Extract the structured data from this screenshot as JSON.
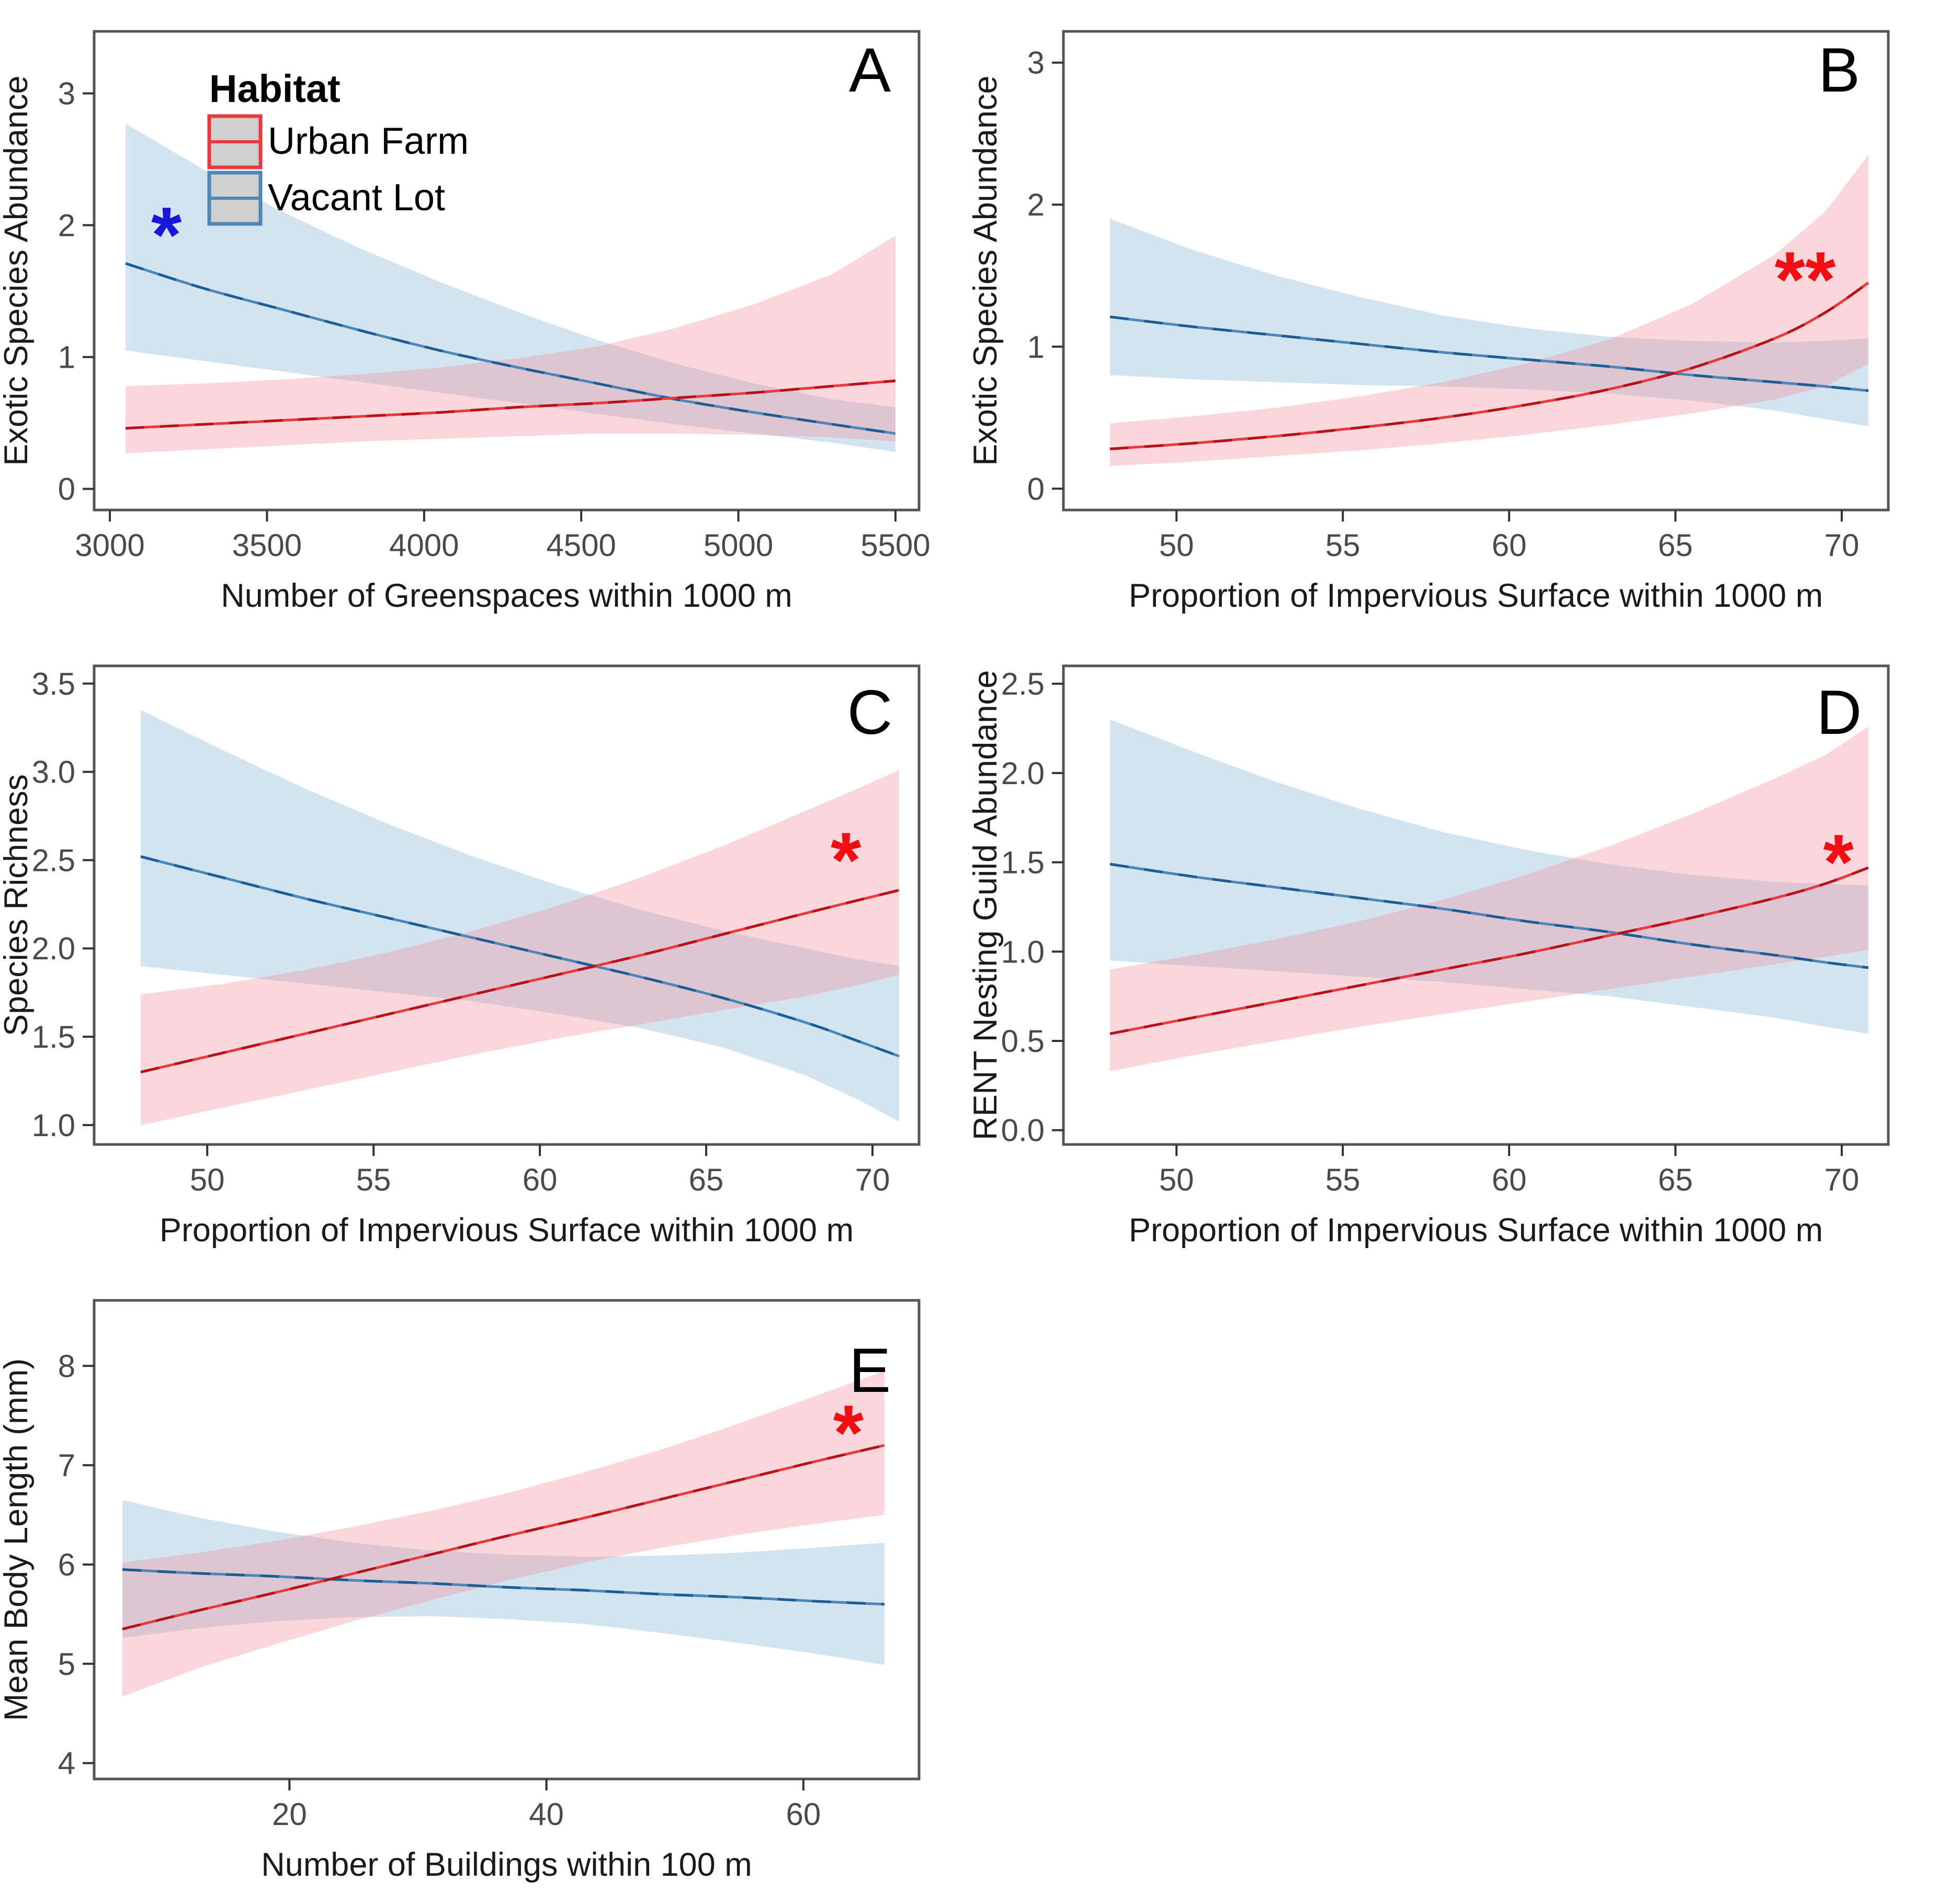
{
  "figure": {
    "background": "#ffffff",
    "border_color": "#545454",
    "tick_color": "#333333",
    "tick_label_color": "#4a4a4a",
    "axis_title_color": "#1a1a1a",
    "panel_letter_color": "#000000"
  },
  "colors": {
    "red_line": "#E8393F",
    "red_line_dark": "#B5121B",
    "red_fill": "#F28C96",
    "red_fill_opacity": 0.35,
    "blue_line": "#4E86B7",
    "blue_line_dark": "#1E5C94",
    "blue_fill": "#9DC3E0",
    "blue_fill_opacity": 0.45,
    "annotation_red": "#F20D12",
    "annotation_blue": "#1616DD",
    "legend_key_fill": "#cfcfcf"
  },
  "legend": {
    "title": "Habitat",
    "entries": [
      {
        "label": "Urban Farm",
        "color_key": "red"
      },
      {
        "label": "Vacant Lot",
        "color_key": "blue"
      }
    ]
  },
  "chart_data": [
    {
      "panel": "A",
      "type": "line",
      "panel_letter": "A",
      "xlabel": "Number of Greenspaces within 1000 m",
      "ylabel": "Exotic Species Abundance",
      "xlim": [
        2950,
        5575
      ],
      "ylim": [
        -0.16,
        3.47
      ],
      "xticks": [
        3000,
        3500,
        4000,
        4500,
        5000,
        5500
      ],
      "xtick_labels": [
        "3000",
        "3500",
        "4000",
        "4500",
        "5000",
        "5500"
      ],
      "yticks": [
        0,
        1,
        2,
        3
      ],
      "ytick_labels": [
        "0",
        "1",
        "2",
        "3"
      ],
      "legend": true,
      "annotation": {
        "text": "*",
        "x": 3180,
        "y": 2.02,
        "color_key": "annotation_blue"
      },
      "series": [
        {
          "name": "Vacant Lot",
          "color_key": "blue",
          "x": [
            3050,
            3300,
            3550,
            3800,
            4050,
            4300,
            4550,
            4800,
            5050,
            5300,
            5500
          ],
          "line": [
            1.71,
            1.52,
            1.36,
            1.2,
            1.05,
            0.92,
            0.8,
            0.68,
            0.58,
            0.49,
            0.42
          ],
          "upper": [
            2.77,
            2.42,
            2.1,
            1.82,
            1.57,
            1.34,
            1.13,
            0.95,
            0.8,
            0.68,
            0.62
          ],
          "lower": [
            1.05,
            0.97,
            0.89,
            0.81,
            0.73,
            0.65,
            0.57,
            0.49,
            0.42,
            0.35,
            0.28
          ]
        },
        {
          "name": "Urban Farm",
          "color_key": "red",
          "x": [
            3050,
            3300,
            3550,
            3800,
            4050,
            4300,
            4550,
            4800,
            5050,
            5300,
            5500
          ],
          "line": [
            0.46,
            0.49,
            0.52,
            0.55,
            0.58,
            0.62,
            0.65,
            0.69,
            0.73,
            0.78,
            0.82
          ],
          "upper": [
            0.78,
            0.8,
            0.83,
            0.87,
            0.92,
            0.99,
            1.08,
            1.22,
            1.4,
            1.63,
            1.92
          ],
          "lower": [
            0.27,
            0.3,
            0.33,
            0.36,
            0.38,
            0.4,
            0.42,
            0.42,
            0.41,
            0.39,
            0.36
          ]
        }
      ]
    },
    {
      "panel": "B",
      "type": "line",
      "panel_letter": "B",
      "xlabel": "Proportion of Impervious Surface within 1000 m",
      "ylabel": "Exotic Species Abundance",
      "xlim": [
        46.6,
        71.4
      ],
      "ylim": [
        -0.15,
        3.22
      ],
      "xticks": [
        50,
        55,
        60,
        65,
        70
      ],
      "xtick_labels": [
        "50",
        "55",
        "60",
        "65",
        "70"
      ],
      "yticks": [
        0,
        1,
        2,
        3
      ],
      "ytick_labels": [
        "0",
        "1",
        "2",
        "3"
      ],
      "legend": false,
      "annotation": {
        "text": "**",
        "x": 68.9,
        "y": 1.56,
        "color_key": "annotation_red"
      },
      "series": [
        {
          "name": "Vacant Lot",
          "color_key": "blue",
          "x": [
            48,
            50.5,
            53,
            55.5,
            58,
            60.5,
            63,
            65.5,
            68,
            69.5,
            70.8
          ],
          "line": [
            1.21,
            1.14,
            1.08,
            1.02,
            0.96,
            0.91,
            0.86,
            0.8,
            0.75,
            0.72,
            0.69
          ],
          "upper": [
            1.9,
            1.68,
            1.5,
            1.35,
            1.22,
            1.13,
            1.07,
            1.04,
            1.03,
            1.04,
            1.06
          ],
          "lower": [
            0.8,
            0.77,
            0.75,
            0.73,
            0.72,
            0.7,
            0.67,
            0.62,
            0.55,
            0.49,
            0.44
          ]
        },
        {
          "name": "Urban Farm",
          "color_key": "red",
          "x": [
            48,
            50.5,
            53,
            55.5,
            58,
            60.5,
            63,
            65.5,
            68,
            69.5,
            70.8
          ],
          "line": [
            0.28,
            0.32,
            0.37,
            0.43,
            0.5,
            0.59,
            0.7,
            0.85,
            1.06,
            1.24,
            1.45
          ],
          "upper": [
            0.46,
            0.51,
            0.57,
            0.65,
            0.75,
            0.88,
            1.05,
            1.3,
            1.65,
            1.95,
            2.35
          ],
          "lower": [
            0.16,
            0.19,
            0.23,
            0.27,
            0.32,
            0.38,
            0.45,
            0.53,
            0.63,
            0.72,
            0.88
          ]
        }
      ]
    },
    {
      "panel": "C",
      "type": "line",
      "panel_letter": "C",
      "xlabel": "Proportion of Impervious Surface within 1000 m",
      "ylabel": "Species Richness",
      "xlim": [
        46.6,
        71.4
      ],
      "ylim": [
        0.89,
        3.6
      ],
      "xticks": [
        50,
        55,
        60,
        65,
        70
      ],
      "xtick_labels": [
        "50",
        "55",
        "60",
        "65",
        "70"
      ],
      "yticks": [
        1.0,
        1.5,
        2.0,
        2.5,
        3.0,
        3.5
      ],
      "ytick_labels": [
        "1.0",
        "1.5",
        "2.0",
        "2.5",
        "3.0",
        "3.5"
      ],
      "legend": false,
      "annotation": {
        "text": "*",
        "x": 69.2,
        "y": 2.57,
        "color_key": "annotation_red"
      },
      "series": [
        {
          "name": "Vacant Lot",
          "color_key": "blue",
          "x": [
            48,
            50.5,
            53,
            55.5,
            58,
            60.5,
            63,
            65.5,
            68,
            69.5,
            70.8
          ],
          "line": [
            2.52,
            2.4,
            2.28,
            2.17,
            2.06,
            1.95,
            1.84,
            1.72,
            1.58,
            1.48,
            1.39
          ],
          "upper": [
            3.35,
            3.12,
            2.9,
            2.7,
            2.52,
            2.36,
            2.22,
            2.1,
            2.0,
            1.94,
            1.9
          ],
          "lower": [
            1.9,
            1.85,
            1.8,
            1.75,
            1.7,
            1.63,
            1.55,
            1.44,
            1.28,
            1.15,
            1.02
          ]
        },
        {
          "name": "Urban Farm",
          "color_key": "red",
          "x": [
            48,
            50.5,
            53,
            55.5,
            58,
            60.5,
            63,
            65.5,
            68,
            69.5,
            70.8
          ],
          "line": [
            1.3,
            1.41,
            1.52,
            1.63,
            1.74,
            1.85,
            1.96,
            2.08,
            2.2,
            2.27,
            2.33
          ],
          "upper": [
            1.74,
            1.8,
            1.88,
            1.98,
            2.1,
            2.24,
            2.4,
            2.58,
            2.78,
            2.9,
            3.01
          ],
          "lower": [
            1.0,
            1.1,
            1.2,
            1.3,
            1.4,
            1.49,
            1.57,
            1.65,
            1.73,
            1.79,
            1.85
          ]
        }
      ]
    },
    {
      "panel": "D",
      "type": "line",
      "panel_letter": "D",
      "xlabel": "Proportion of Impervious Surface within 1000 m",
      "ylabel": "RENT Nesting Guild Abundance",
      "xlim": [
        46.6,
        71.4
      ],
      "ylim": [
        -0.08,
        2.6
      ],
      "xticks": [
        50,
        55,
        60,
        65,
        70
      ],
      "xtick_labels": [
        "50",
        "55",
        "60",
        "65",
        "70"
      ],
      "yticks": [
        0.0,
        0.5,
        1.0,
        1.5,
        2.0,
        2.5
      ],
      "ytick_labels": [
        "0.0",
        "0.5",
        "1.0",
        "1.5",
        "2.0",
        "2.5"
      ],
      "legend": false,
      "annotation": {
        "text": "*",
        "x": 69.9,
        "y": 1.57,
        "color_key": "annotation_red"
      },
      "series": [
        {
          "name": "Vacant Lot",
          "color_key": "blue",
          "x": [
            48,
            50.5,
            53,
            55.5,
            58,
            60.5,
            63,
            65.5,
            68,
            69.5,
            70.8
          ],
          "line": [
            1.49,
            1.42,
            1.36,
            1.3,
            1.24,
            1.17,
            1.11,
            1.04,
            0.98,
            0.94,
            0.91
          ],
          "upper": [
            2.3,
            2.12,
            1.95,
            1.8,
            1.67,
            1.57,
            1.49,
            1.43,
            1.39,
            1.38,
            1.37
          ],
          "lower": [
            0.95,
            0.92,
            0.89,
            0.86,
            0.83,
            0.79,
            0.75,
            0.69,
            0.63,
            0.58,
            0.54
          ]
        },
        {
          "name": "Urban Farm",
          "color_key": "red",
          "x": [
            48,
            50.5,
            53,
            55.5,
            58,
            60.5,
            63,
            65.5,
            68,
            69.5,
            70.8
          ],
          "line": [
            0.54,
            0.63,
            0.72,
            0.81,
            0.9,
            0.99,
            1.09,
            1.19,
            1.3,
            1.38,
            1.47
          ],
          "upper": [
            0.9,
            0.98,
            1.07,
            1.17,
            1.29,
            1.43,
            1.59,
            1.77,
            1.97,
            2.1,
            2.26
          ],
          "lower": [
            0.33,
            0.42,
            0.5,
            0.58,
            0.65,
            0.72,
            0.79,
            0.86,
            0.93,
            0.97,
            1.01
          ]
        }
      ]
    },
    {
      "panel": "E",
      "type": "line",
      "panel_letter": "E",
      "xlabel": "Number of Buildings within 100 m",
      "ylabel": "Mean Body Length (mm)",
      "xlim": [
        4.8,
        69.0
      ],
      "ylim": [
        3.84,
        8.66
      ],
      "xticks": [
        20,
        40,
        60
      ],
      "xtick_labels": [
        "20",
        "40",
        "60"
      ],
      "yticks": [
        4,
        5,
        6,
        7,
        8
      ],
      "ytick_labels": [
        "4",
        "5",
        "6",
        "7",
        "8"
      ],
      "legend": false,
      "annotation": {
        "text": "*",
        "x": 63.5,
        "y": 7.45,
        "color_key": "annotation_red"
      },
      "series": [
        {
          "name": "Vacant Lot",
          "color_key": "blue",
          "x": [
            7,
            13,
            19,
            25,
            31,
            37,
            43,
            49,
            55,
            61,
            66.3
          ],
          "line": [
            5.95,
            5.91,
            5.88,
            5.84,
            5.81,
            5.77,
            5.74,
            5.7,
            5.67,
            5.63,
            5.6
          ],
          "upper": [
            6.65,
            6.47,
            6.33,
            6.22,
            6.14,
            6.1,
            6.08,
            6.09,
            6.12,
            6.17,
            6.22
          ],
          "lower": [
            5.26,
            5.36,
            5.43,
            5.47,
            5.48,
            5.45,
            5.4,
            5.31,
            5.21,
            5.1,
            4.99
          ]
        },
        {
          "name": "Urban Farm",
          "color_key": "red",
          "x": [
            7,
            13,
            19,
            25,
            31,
            37,
            43,
            49,
            55,
            61,
            66.3
          ],
          "line": [
            5.35,
            5.54,
            5.72,
            5.91,
            6.1,
            6.29,
            6.47,
            6.66,
            6.85,
            7.04,
            7.2
          ],
          "upper": [
            6.02,
            6.12,
            6.24,
            6.38,
            6.54,
            6.72,
            6.93,
            7.16,
            7.42,
            7.7,
            7.95
          ],
          "lower": [
            4.67,
            4.96,
            5.2,
            5.43,
            5.64,
            5.84,
            6.02,
            6.17,
            6.3,
            6.41,
            6.5
          ]
        }
      ]
    }
  ]
}
